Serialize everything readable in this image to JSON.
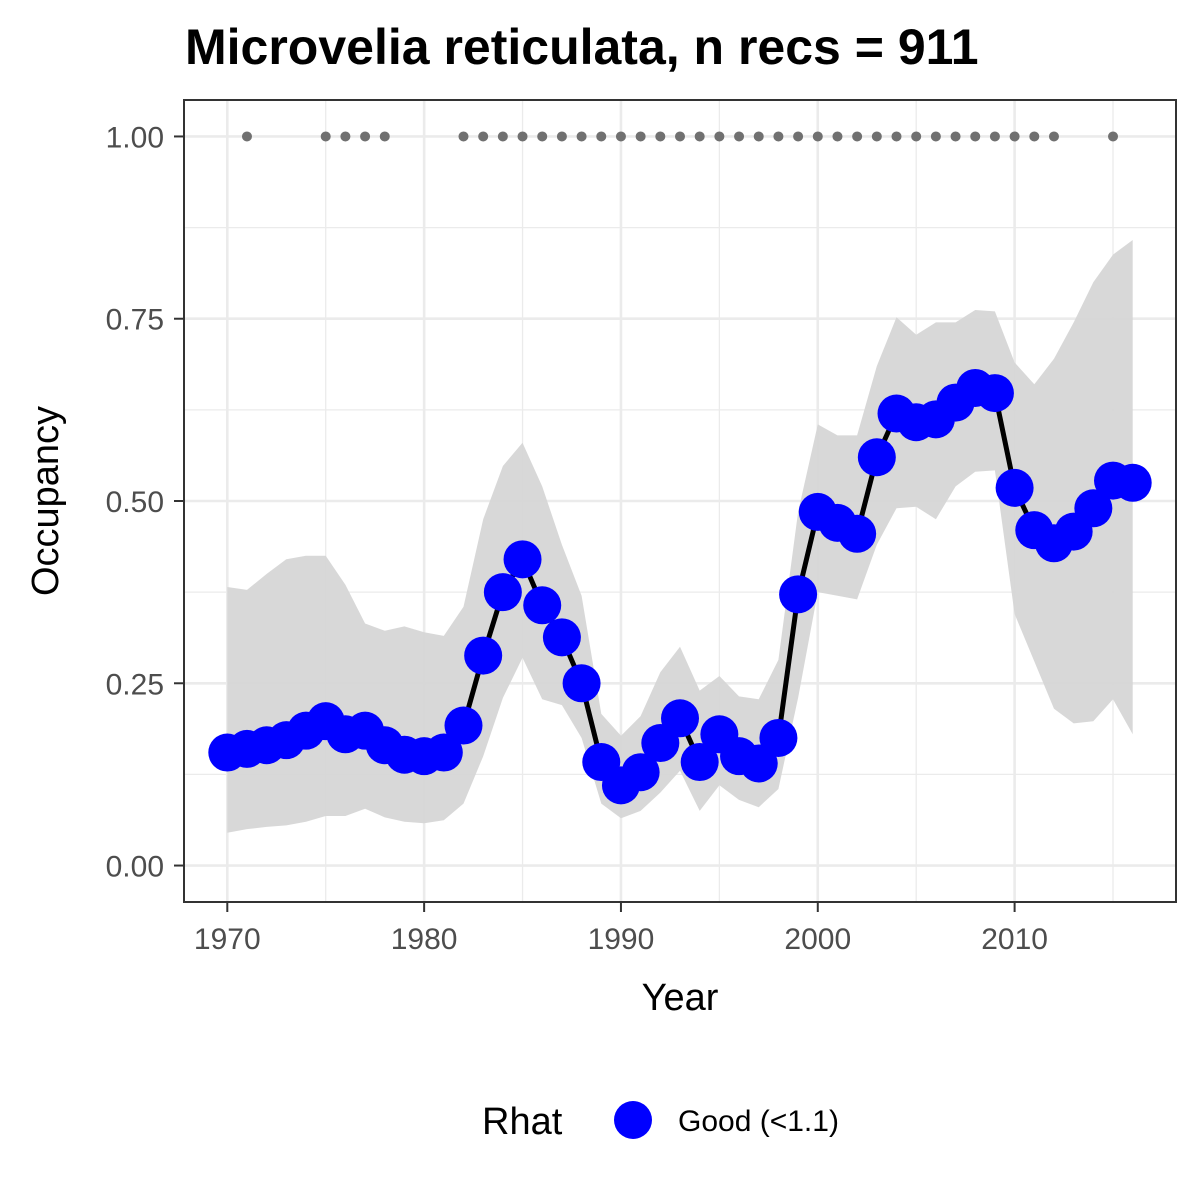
{
  "chart_data": {
    "type": "line",
    "title": "Microvelia reticulata, n recs = 911",
    "xlabel": "Year",
    "ylabel": "Occupancy",
    "xlim": [
      1967.8,
      2018.2
    ],
    "ylim": [
      -0.05,
      1.05
    ],
    "x_ticks": [
      1970,
      1980,
      1990,
      2000,
      2010
    ],
    "x_tick_labels": [
      "1970",
      "1980",
      "1990",
      "2000",
      "2010"
    ],
    "y_ticks": [
      0,
      0.25,
      0.5,
      0.75,
      1
    ],
    "y_tick_labels": [
      "0.00",
      "0.25",
      "0.50",
      "0.75",
      "1.00"
    ],
    "grid": true,
    "legend": {
      "title": "Rhat",
      "position": "bottom",
      "entries": [
        {
          "label": "Good (<1.1)",
          "color": "#0000ff"
        }
      ]
    },
    "colors": {
      "points": "#0000ff",
      "line": "#000000",
      "ribbon": "#d6d6d6",
      "records": "#707070",
      "panel_border": "#333333",
      "grid": "#ebebeb"
    },
    "series": [
      {
        "x": [
          1970,
          1971,
          1972,
          1973,
          1974,
          1975,
          1976,
          1977,
          1978,
          1979,
          1980,
          1981,
          1982,
          1983,
          1984,
          1985,
          1986,
          1987,
          1988,
          1989,
          1990,
          1991,
          1992,
          1993,
          1994,
          1995,
          1996,
          1997,
          1998,
          1999,
          2000,
          2001,
          2002,
          2003,
          2004,
          2005,
          2006,
          2007,
          2008,
          2009,
          2010,
          2011,
          2012,
          2013,
          2014,
          2015,
          2016
        ],
        "y": [
          0.155,
          0.16,
          0.165,
          0.172,
          0.185,
          0.198,
          0.18,
          0.185,
          0.165,
          0.152,
          0.15,
          0.155,
          0.192,
          0.288,
          0.375,
          0.42,
          0.357,
          0.313,
          0.25,
          0.142,
          0.11,
          0.128,
          0.168,
          0.202,
          0.142,
          0.18,
          0.15,
          0.14,
          0.175,
          0.372,
          0.485,
          0.47,
          0.455,
          0.56,
          0.62,
          0.608,
          0.612,
          0.635,
          0.655,
          0.648,
          0.518,
          0.46,
          0.442,
          0.458,
          0.49,
          0.528,
          0.525
        ],
        "lower": [
          0.045,
          0.05,
          0.053,
          0.055,
          0.06,
          0.068,
          0.068,
          0.078,
          0.066,
          0.06,
          0.058,
          0.062,
          0.085,
          0.15,
          0.23,
          0.285,
          0.228,
          0.22,
          0.175,
          0.085,
          0.065,
          0.075,
          0.1,
          0.13,
          0.075,
          0.11,
          0.09,
          0.08,
          0.105,
          0.23,
          0.375,
          0.37,
          0.365,
          0.44,
          0.49,
          0.492,
          0.475,
          0.52,
          0.54,
          0.542,
          0.345,
          0.28,
          0.215,
          0.195,
          0.198,
          0.228,
          0.18
        ],
        "upper": [
          0.382,
          0.378,
          0.4,
          0.42,
          0.425,
          0.425,
          0.385,
          0.332,
          0.322,
          0.328,
          0.32,
          0.315,
          0.355,
          0.475,
          0.548,
          0.58,
          0.52,
          0.44,
          0.37,
          0.208,
          0.178,
          0.205,
          0.265,
          0.3,
          0.24,
          0.26,
          0.232,
          0.228,
          0.282,
          0.485,
          0.605,
          0.59,
          0.59,
          0.685,
          0.752,
          0.728,
          0.745,
          0.745,
          0.762,
          0.76,
          0.69,
          0.66,
          0.695,
          0.745,
          0.8,
          0.838,
          0.858
        ]
      }
    ],
    "record_years": [
      1971,
      1975,
      1976,
      1977,
      1978,
      1982,
      1983,
      1984,
      1985,
      1986,
      1987,
      1988,
      1989,
      1990,
      1991,
      1992,
      1993,
      1994,
      1995,
      1996,
      1997,
      1998,
      1999,
      2000,
      2001,
      2002,
      2003,
      2004,
      2005,
      2006,
      2007,
      2008,
      2009,
      2010,
      2011,
      2012,
      2015
    ],
    "record_value": 1.0
  }
}
